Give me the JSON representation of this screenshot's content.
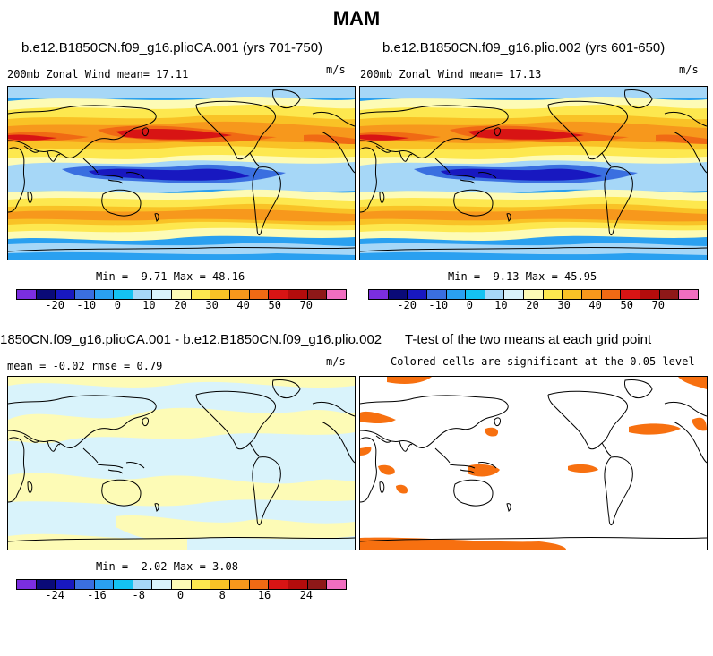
{
  "figure": {
    "title": "MAM"
  },
  "panels": [
    {
      "title": "b.e12.B1850CN.f09_g16.plioCA.001 (yrs 701-750)",
      "left_label": "200mb Zonal Wind  mean=  17.11",
      "units": "m/s",
      "stats": "Min =  -9.71 Max =  48.16",
      "field": "Zonal wind, 200mb (full field)"
    },
    {
      "title": "b.e12.B1850CN.f09_g16.plio.002 (yrs 601-650)",
      "left_label": "200mb Zonal Wind  mean=  17.13",
      "units": "m/s",
      "stats": "Min =  -9.13 Max =  45.95",
      "field": "Zonal wind, 200mb (full field)"
    },
    {
      "title": "1850CN.f09_g16.plioCA.001 - b.e12.B1850CN.f09_g16.plio.002",
      "left_label": "mean =  -0.02    rmse =   0.79",
      "units": "m/s",
      "stats": "Min =  -2.02 Max =   3.08",
      "field": "difference"
    },
    {
      "title": "T-test of the two means at each grid point",
      "center_label": "Colored cells are significant at the 0.05 level",
      "field": "significance"
    }
  ],
  "colorbars": {
    "full": {
      "colors": [
        "#7b2ee0",
        "#0a0a78",
        "#1818c0",
        "#3a6fe0",
        "#2aa0f0",
        "#14c2f2",
        "#a6d7f7",
        "#d9f3fb",
        "#fdfbb6",
        "#fde84f",
        "#f9c226",
        "#f7981c",
        "#f06a14",
        "#d81414",
        "#b40c0c",
        "#8e1818",
        "#f06ec0"
      ],
      "tick_labels": [
        "-20",
        "-10",
        "0",
        "10",
        "20",
        "30",
        "40",
        "50",
        "70"
      ]
    },
    "diff": {
      "colors": [
        "#7b2ee0",
        "#0a0a78",
        "#1818c0",
        "#3a6fe0",
        "#2aa0f0",
        "#14c2f2",
        "#a6d7f7",
        "#d9f3fb",
        "#fdfbb6",
        "#fde84f",
        "#f9c226",
        "#f7981c",
        "#f06a14",
        "#d81414",
        "#b40c0c",
        "#8e1818",
        "#f06ec0"
      ],
      "tick_labels": [
        "-24",
        "-16",
        "-8",
        "0",
        "8",
        "16",
        "24"
      ]
    }
  }
}
